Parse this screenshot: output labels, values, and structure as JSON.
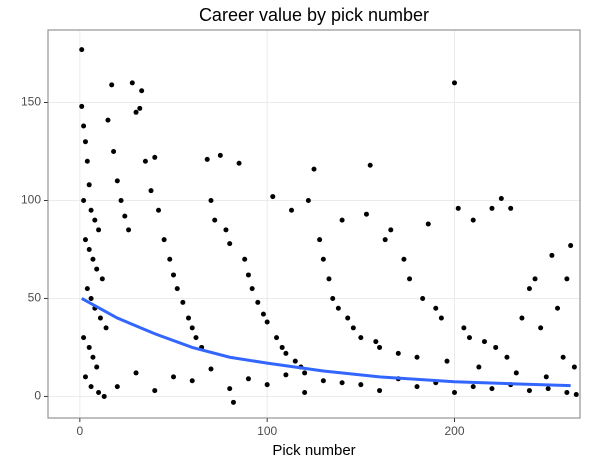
{
  "chart_data": {
    "type": "scatter",
    "title": "Career value by pick number",
    "x_label": "Pick number",
    "xlim": [
      -17,
      267
    ],
    "ylim": [
      -11,
      187
    ],
    "xticks": [
      0,
      100,
      200
    ],
    "yticks": [
      0,
      50,
      100,
      150
    ],
    "grid": true,
    "points": {
      "color": "#000000",
      "x": [
        1,
        1,
        2,
        3,
        4,
        5,
        2,
        6,
        8,
        10,
        3,
        5,
        7,
        9,
        12,
        4,
        6,
        8,
        11,
        14,
        2,
        5,
        7,
        9,
        3,
        6,
        10,
        13,
        15,
        17,
        18,
        20,
        22,
        24,
        26,
        28,
        30,
        32,
        33,
        35,
        38,
        40,
        42,
        45,
        48,
        50,
        52,
        55,
        58,
        60,
        62,
        65,
        68,
        70,
        72,
        75,
        78,
        80,
        82,
        85,
        88,
        90,
        92,
        95,
        98,
        100,
        103,
        105,
        108,
        110,
        113,
        115,
        118,
        120,
        122,
        125,
        128,
        130,
        133,
        135,
        138,
        140,
        143,
        146,
        150,
        153,
        155,
        158,
        160,
        163,
        166,
        170,
        173,
        176,
        180,
        183,
        186,
        190,
        193,
        196,
        200,
        202,
        205,
        208,
        210,
        213,
        216,
        220,
        222,
        225,
        228,
        230,
        233,
        236,
        240,
        243,
        246,
        249,
        252,
        255,
        258,
        260,
        262,
        264,
        20,
        40,
        60,
        80,
        100,
        120,
        140,
        160,
        180,
        200,
        220,
        240,
        260,
        30,
        50,
        70,
        90,
        110,
        130,
        150,
        170,
        190,
        210,
        230,
        250,
        265
      ],
      "y": [
        177,
        148,
        138,
        130,
        120,
        108,
        100,
        95,
        90,
        85,
        80,
        75,
        70,
        65,
        60,
        55,
        50,
        45,
        40,
        35,
        30,
        25,
        20,
        15,
        10,
        5,
        2,
        0,
        141,
        159,
        125,
        110,
        100,
        92,
        85,
        160,
        145,
        147,
        156,
        120,
        105,
        122,
        95,
        80,
        70,
        62,
        55,
        48,
        40,
        35,
        30,
        25,
        121,
        100,
        90,
        123,
        85,
        78,
        -3,
        119,
        70,
        62,
        55,
        48,
        42,
        38,
        102,
        30,
        25,
        22,
        95,
        18,
        15,
        12,
        100,
        116,
        80,
        70,
        60,
        50,
        45,
        90,
        40,
        35,
        30,
        93,
        118,
        28,
        25,
        80,
        85,
        22,
        70,
        60,
        20,
        50,
        88,
        45,
        40,
        18,
        160,
        96,
        35,
        30,
        90,
        15,
        28,
        96,
        25,
        101,
        20,
        96,
        12,
        40,
        55,
        60,
        35,
        10,
        72,
        45,
        20,
        60,
        77,
        15,
        5,
        3,
        8,
        4,
        6,
        2,
        7,
        3,
        5,
        2,
        4,
        3,
        2,
        12,
        10,
        14,
        9,
        11,
        8,
        6,
        9,
        7,
        5,
        6,
        4,
        1
      ]
    },
    "trend": {
      "color": "#3366ff",
      "x": [
        1,
        20,
        40,
        60,
        80,
        100,
        130,
        160,
        200,
        230,
        262
      ],
      "y": [
        50,
        40,
        32,
        25,
        20,
        17,
        13,
        10,
        7.5,
        6.5,
        5.5
      ]
    }
  }
}
